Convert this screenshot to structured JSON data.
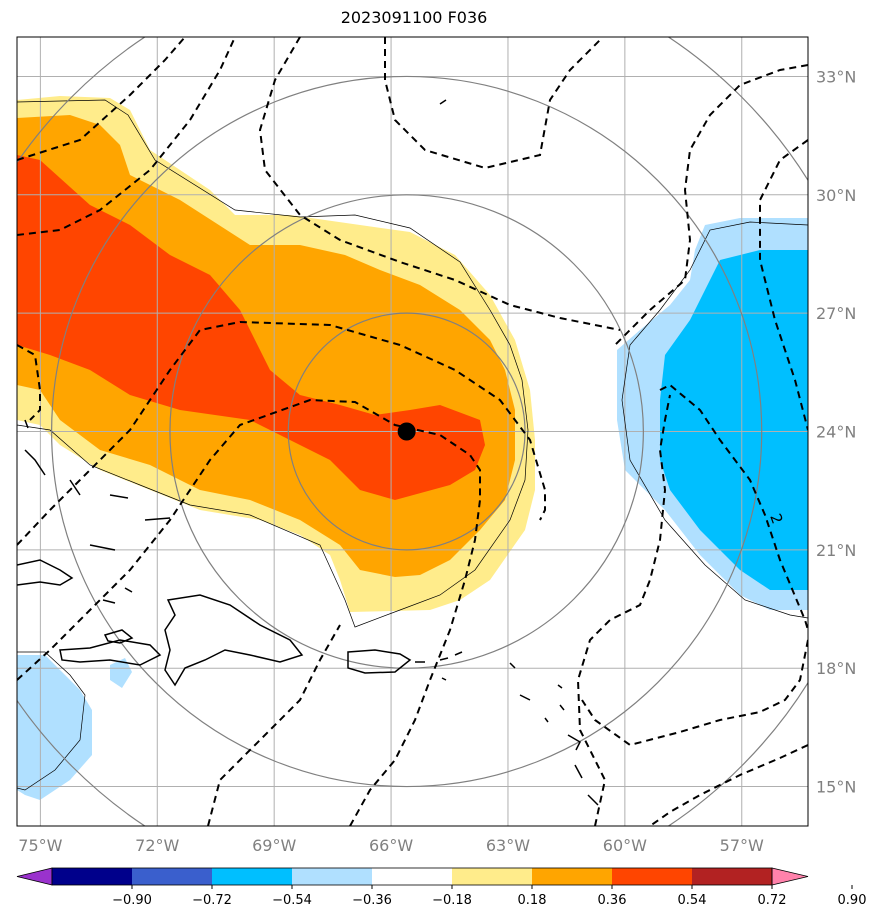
{
  "title": "2023091100 F036",
  "map": {
    "lon_range": [
      -75.6,
      -55.3
    ],
    "lat_range": [
      14.0,
      34.0
    ],
    "lon_ticks": [
      {
        "value": -75,
        "label": "75°W"
      },
      {
        "value": -72,
        "label": "72°W"
      },
      {
        "value": -69,
        "label": "69°W"
      },
      {
        "value": -66,
        "label": "66°W"
      },
      {
        "value": -63,
        "label": "63°W"
      },
      {
        "value": -60,
        "label": "60°W"
      },
      {
        "value": -57,
        "label": "57°W"
      }
    ],
    "lat_ticks": [
      {
        "value": 33,
        "label": "33°N"
      },
      {
        "value": 30,
        "label": "30°N"
      },
      {
        "value": 27,
        "label": "27°N"
      },
      {
        "value": 24,
        "label": "24°N"
      },
      {
        "value": 21,
        "label": "21°N"
      },
      {
        "value": 18,
        "label": "18°N"
      },
      {
        "value": 15,
        "label": "15°N"
      }
    ],
    "grid": true,
    "storm_center": {
      "lon": -65.6,
      "lat": 24.0
    },
    "range_rings_deg": [
      3,
      6,
      9,
      12
    ],
    "contour_label": "2"
  },
  "colorbar": {
    "levels": [
      "−0.90",
      "−0.72",
      "−0.54",
      "−0.36",
      "−0.18",
      "0.18",
      "0.36",
      "0.54",
      "0.72",
      "0.90"
    ],
    "colors": [
      "#9a32cd",
      "#00008b",
      "#3a5fcd",
      "#00bfff",
      "#b0e0ff",
      "#ffffff",
      "#ffec8b",
      "#ffa500",
      "#ff4500",
      "#b22222",
      "#ff82ab"
    ]
  },
  "colors": {
    "positive_1": "#ffec8b",
    "positive_2": "#ffa500",
    "positive_3": "#ff4500",
    "negative_1": "#b0e0ff",
    "negative_2": "#00bfff",
    "grid": "#b0b0b0",
    "ring": "#808080"
  }
}
